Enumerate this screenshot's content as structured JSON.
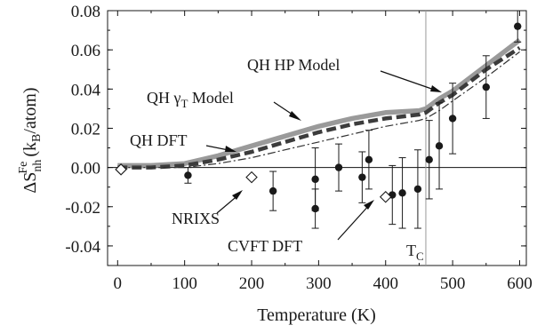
{
  "chart_data": {
    "type": "line",
    "xlabel": "Temperature (K)",
    "ylabel": {
      "prefix": "ΔS",
      "sub": "nh",
      "sup": "Fe",
      "unit_open": " (k",
      "unit_sub": "B",
      "unit_close": "/atom)"
    },
    "xlim": [
      -15,
      610
    ],
    "ylim": [
      -0.05,
      0.08
    ],
    "x_ticks": [
      0,
      100,
      200,
      300,
      400,
      500,
      600
    ],
    "x_tick_labels": [
      "0",
      "100",
      "200",
      "300",
      "400",
      "500",
      "600"
    ],
    "y_ticks": [
      -0.04,
      -0.02,
      0.0,
      0.02,
      0.04,
      0.06,
      0.08
    ],
    "y_tick_labels": [
      "-0.04",
      "-0.02",
      "0.00",
      "0.02",
      "0.04",
      "0.06",
      "0.08"
    ],
    "grid": false,
    "reference_lines": [
      {
        "axis": "y",
        "value": 0.0
      },
      {
        "axis": "x",
        "value": 460
      }
    ],
    "tc": {
      "x": 460,
      "label": "T",
      "label_sub": "C"
    },
    "series": [
      {
        "name": "QH HP Model",
        "style": "solid-thick",
        "color": "#9a9a9a",
        "x": [
          0,
          50,
          100,
          150,
          200,
          250,
          300,
          350,
          400,
          450,
          460,
          480,
          500,
          550,
          600
        ],
        "y": [
          0.001,
          0.001,
          0.002,
          0.006,
          0.011,
          0.016,
          0.021,
          0.025,
          0.028,
          0.029,
          0.03,
          0.035,
          0.039,
          0.052,
          0.065
        ]
      },
      {
        "name": "QH γT Model",
        "style": "dashed-thick",
        "color": "#3c3c3c",
        "x": [
          0,
          50,
          100,
          150,
          200,
          250,
          300,
          350,
          400,
          450,
          460,
          480,
          500,
          550,
          600
        ],
        "y": [
          0.0,
          0.0,
          0.001,
          0.004,
          0.008,
          0.013,
          0.018,
          0.022,
          0.025,
          0.027,
          0.028,
          0.033,
          0.037,
          0.05,
          0.061
        ]
      },
      {
        "name": "QH DFT",
        "style": "dash-dot-thin",
        "color": "#303030",
        "x": [
          0,
          50,
          100,
          150,
          200,
          250,
          300,
          350,
          400,
          450,
          460,
          480,
          500,
          550,
          600
        ],
        "y": [
          0.0,
          0.0,
          0.0,
          0.002,
          0.005,
          0.009,
          0.013,
          0.017,
          0.021,
          0.024,
          0.025,
          0.029,
          0.034,
          0.046,
          0.059
        ]
      },
      {
        "name": "NRIXS",
        "style": "points-errorbars",
        "color": "#1a1a1a",
        "points": [
          {
            "x": 105,
            "y": -0.004,
            "err": 0.004
          },
          {
            "x": 232,
            "y": -0.012,
            "err": 0.01
          },
          {
            "x": 295,
            "y": -0.006,
            "err": 0.016
          },
          {
            "x": 295,
            "y": -0.021,
            "err": 0.01
          },
          {
            "x": 330,
            "y": 0.0,
            "err": 0.012
          },
          {
            "x": 365,
            "y": -0.005,
            "err": 0.013
          },
          {
            "x": 375,
            "y": 0.004,
            "err": 0.015
          },
          {
            "x": 410,
            "y": -0.014,
            "err": 0.015
          },
          {
            "x": 425,
            "y": -0.013,
            "err": 0.018
          },
          {
            "x": 448,
            "y": -0.011,
            "err": 0.02
          },
          {
            "x": 465,
            "y": 0.004,
            "err": 0.02
          },
          {
            "x": 480,
            "y": 0.011,
            "err": 0.022
          },
          {
            "x": 500,
            "y": 0.025,
            "err": 0.018
          },
          {
            "x": 550,
            "y": 0.041,
            "err": 0.016
          },
          {
            "x": 597,
            "y": 0.072,
            "err": 0.008
          }
        ]
      },
      {
        "name": "CVFT DFT",
        "style": "open-diamonds",
        "color": "#1a1a1a",
        "points": [
          {
            "x": 5,
            "y": -0.001
          },
          {
            "x": 200,
            "y": -0.005
          },
          {
            "x": 400,
            "y": -0.015
          }
        ]
      }
    ],
    "annotations": [
      {
        "name": "QH HP Model",
        "text": "QH HP Model"
      },
      {
        "name": "QH γT Model",
        "text_main": "QH γ",
        "text_sub": "T",
        "text_tail": " Model"
      },
      {
        "name": "QH DFT",
        "text": "QH DFT"
      },
      {
        "name": "NRIXS",
        "text": "NRIXS"
      },
      {
        "name": "CVFT DFT",
        "text": "CVFT DFT"
      }
    ]
  }
}
